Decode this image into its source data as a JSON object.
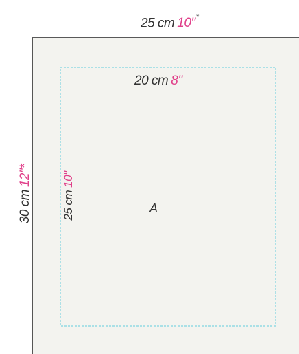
{
  "frame": {
    "outer_width_label": "25 cm",
    "outer_width_inch": "10\"",
    "outer_width_mark": "*",
    "outer_height_label": "30 cm",
    "outer_height_inch": "12\"*",
    "panel_fill": "#f3f3ef",
    "border_color": "#222222"
  },
  "print_area": {
    "width_label": "20 cm",
    "width_inch": "8\"",
    "height_label": "25 cm",
    "height_inch": "10\"",
    "dash_color": "#7fd4e0",
    "panel_letter": "A"
  },
  "accent_color": "#e0408a"
}
